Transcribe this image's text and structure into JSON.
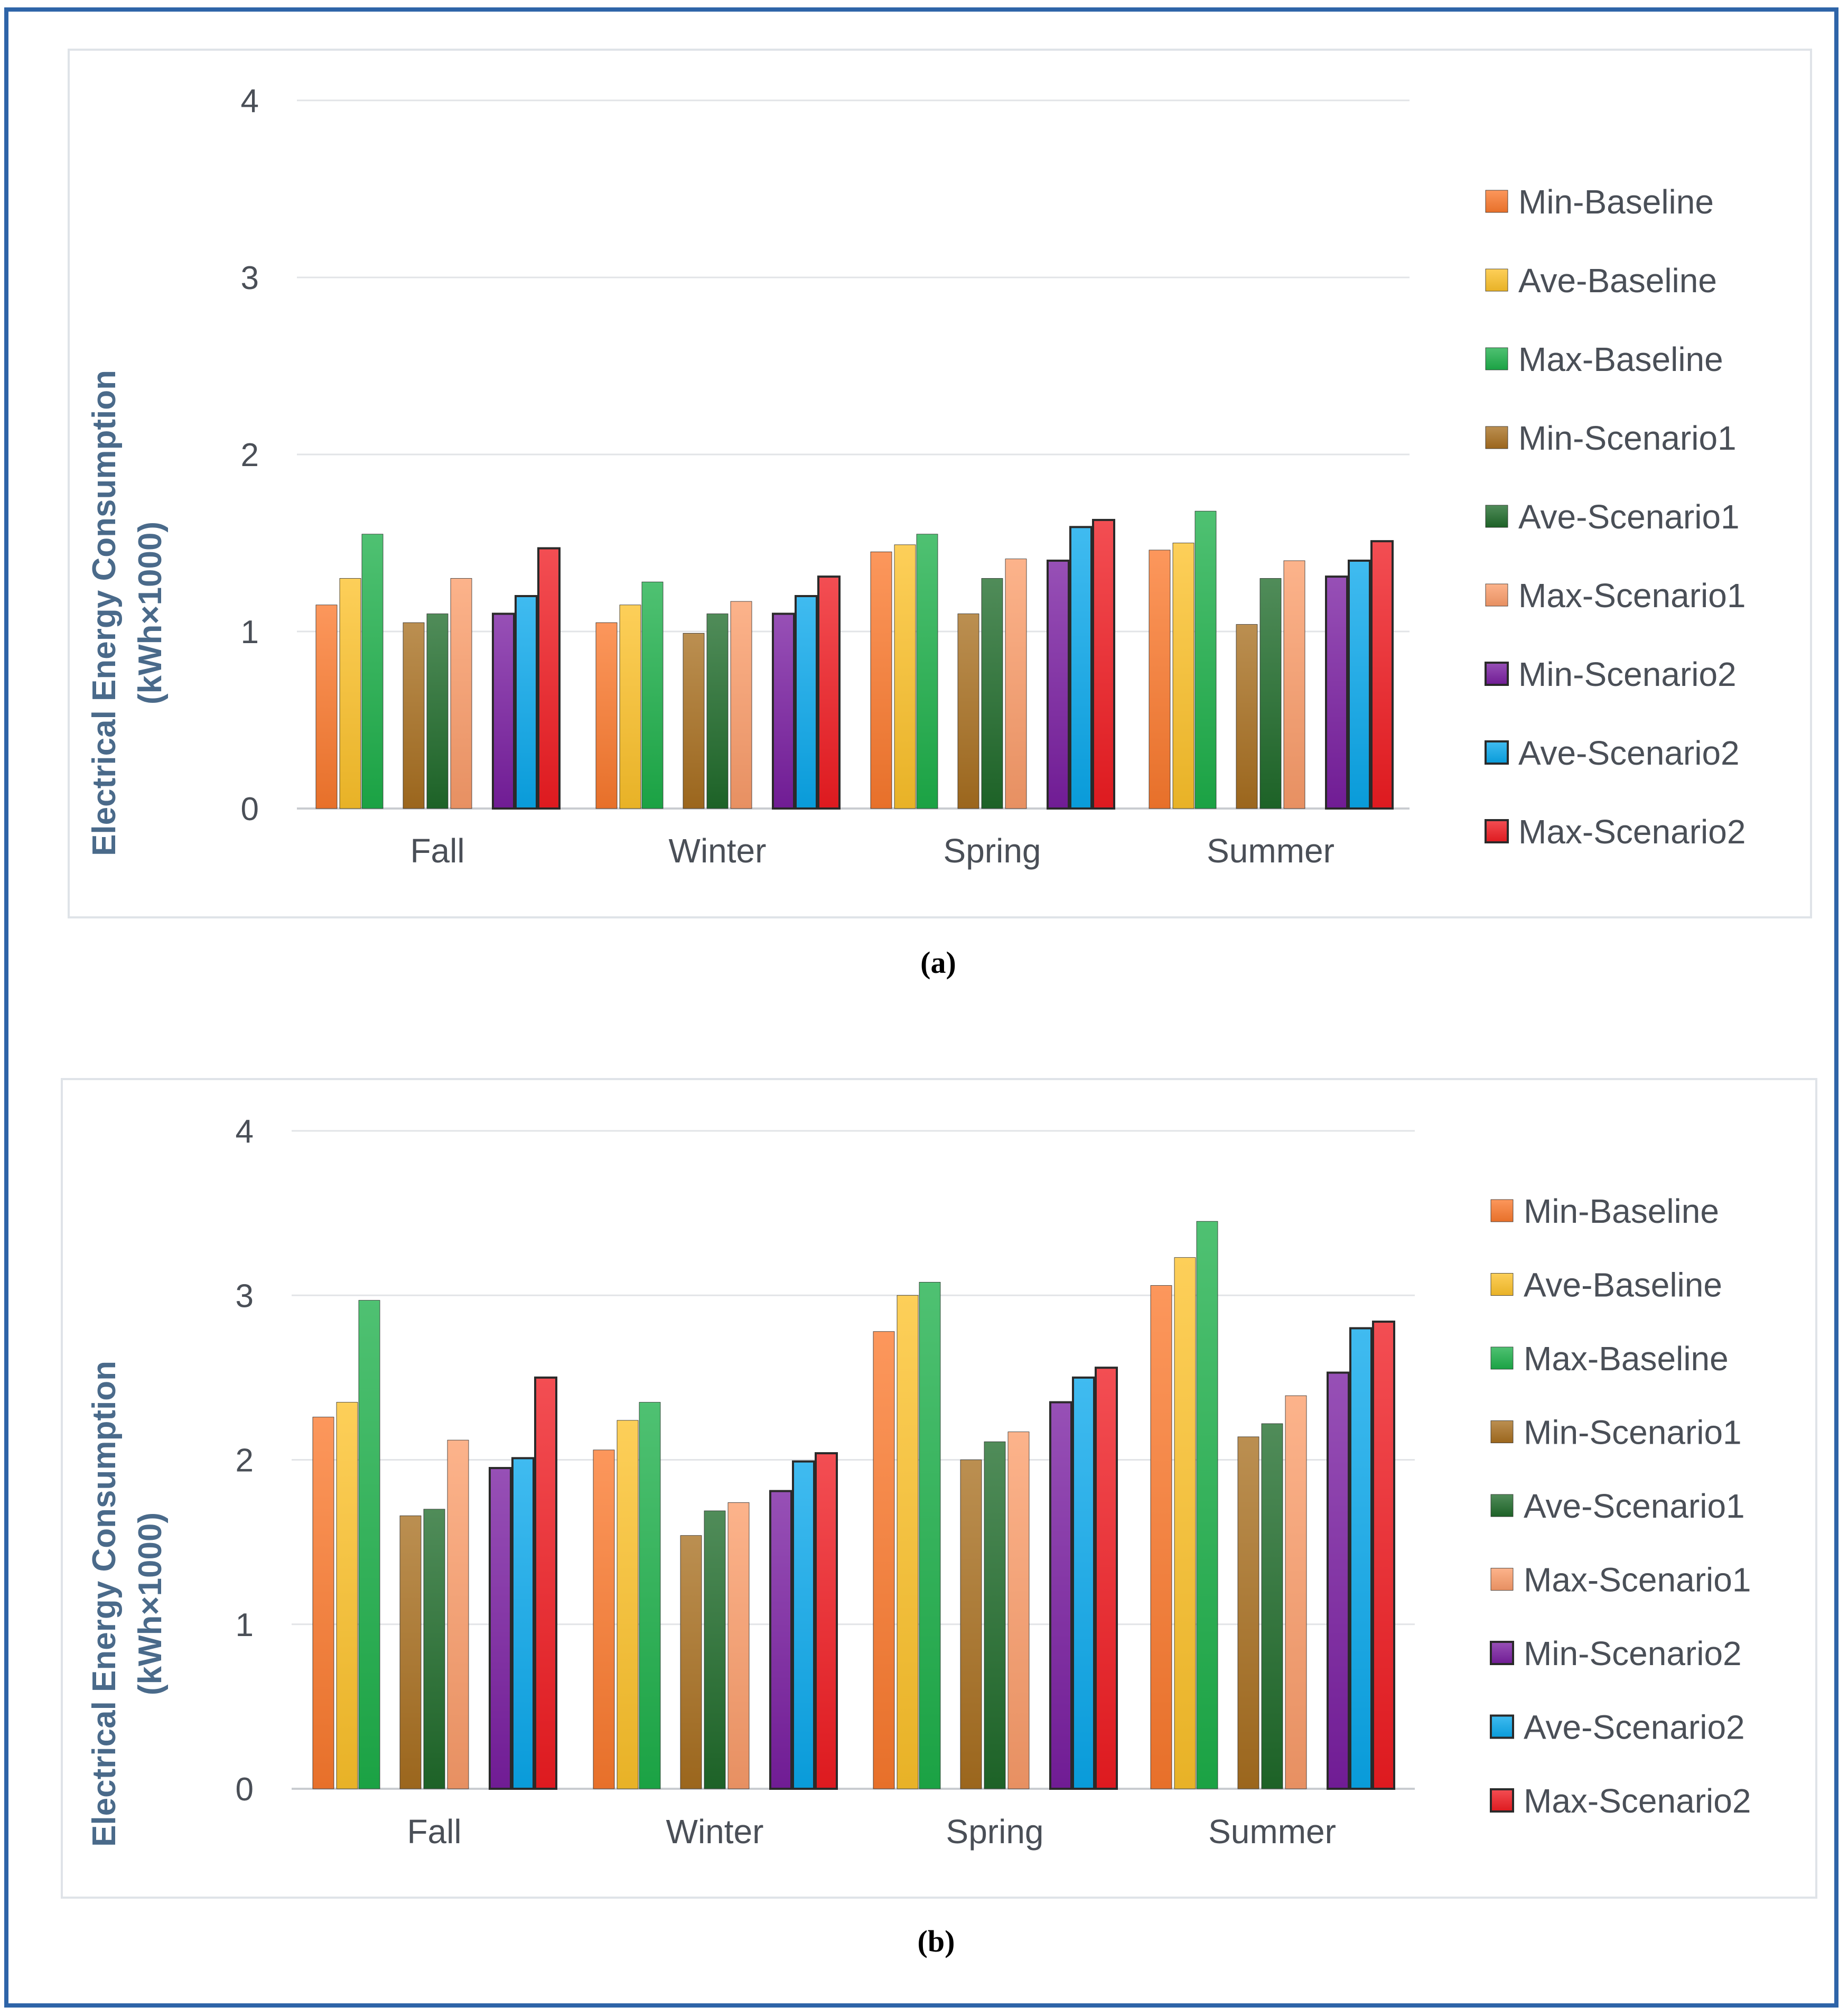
{
  "figure": {
    "caption_a": "(a)",
    "caption_b": "(b)"
  },
  "legend": [
    {
      "label": "Min-Baseline",
      "color": "#fb7a2e"
    },
    {
      "label": "Ave-Baseline",
      "color": "#fcc22a"
    },
    {
      "label": "Max-Baseline",
      "color": "#1db04a"
    },
    {
      "label": "Min-Scenario1",
      "color": "#a86f20"
    },
    {
      "label": "Ave-Scenario1",
      "color": "#1f6b2a"
    },
    {
      "label": "Max-Scenario1",
      "color": "#fb9d6a"
    },
    {
      "label": "Min-Scenario2",
      "color": "#7a1ea1"
    },
    {
      "label": "Ave-Scenario2",
      "color": "#0aa8ec"
    },
    {
      "label": "Max-Scenario2",
      "color": "#f01c22"
    }
  ],
  "chart_data": [
    {
      "id": "a",
      "type": "bar",
      "ylabel_line1": "Electrical Energy Consumption",
      "ylabel_line2": "(kWh×1000)",
      "ylim": [
        0,
        4
      ],
      "yticks": [
        "0",
        "1",
        "2",
        "3",
        "4"
      ],
      "grid": true,
      "legend_position": "right",
      "categories": [
        "Fall",
        "Winter",
        "Spring",
        "Summer"
      ],
      "series": [
        {
          "name": "Min-Baseline",
          "values": [
            1.15,
            1.05,
            1.45,
            1.46
          ]
        },
        {
          "name": "Ave-Baseline",
          "values": [
            1.3,
            1.15,
            1.49,
            1.5
          ]
        },
        {
          "name": "Max-Baseline",
          "values": [
            1.55,
            1.28,
            1.55,
            1.68
          ]
        },
        {
          "name": "Min-Scenario1",
          "values": [
            1.05,
            0.99,
            1.1,
            1.04
          ]
        },
        {
          "name": "Ave-Scenario1",
          "values": [
            1.1,
            1.1,
            1.3,
            1.3
          ]
        },
        {
          "name": "Max-Scenario1",
          "values": [
            1.3,
            1.17,
            1.41,
            1.4
          ]
        },
        {
          "name": "Min-Scenario2",
          "values": [
            1.1,
            1.1,
            1.4,
            1.31
          ]
        },
        {
          "name": "Ave-Scenario2",
          "values": [
            1.2,
            1.2,
            1.59,
            1.4
          ]
        },
        {
          "name": "Max-Scenario2",
          "values": [
            1.47,
            1.31,
            1.63,
            1.51
          ]
        }
      ]
    },
    {
      "id": "b",
      "type": "bar",
      "ylabel_line1": "Electrical Energy Consumption",
      "ylabel_line2": "(kWh×1000)",
      "ylim": [
        0,
        4
      ],
      "yticks": [
        "0",
        "1",
        "2",
        "3",
        "4"
      ],
      "grid": true,
      "legend_position": "right",
      "categories": [
        "Fall",
        "Winter",
        "Spring",
        "Summer"
      ],
      "series": [
        {
          "name": "Min-Baseline",
          "values": [
            2.26,
            2.06,
            2.78,
            3.06
          ]
        },
        {
          "name": "Ave-Baseline",
          "values": [
            2.35,
            2.24,
            3.0,
            3.23
          ]
        },
        {
          "name": "Max-Baseline",
          "values": [
            2.97,
            2.35,
            3.08,
            3.45
          ]
        },
        {
          "name": "Min-Scenario1",
          "values": [
            1.66,
            1.54,
            2.0,
            2.14
          ]
        },
        {
          "name": "Ave-Scenario1",
          "values": [
            1.7,
            1.69,
            2.11,
            2.22
          ]
        },
        {
          "name": "Max-Scenario1",
          "values": [
            2.12,
            1.74,
            2.17,
            2.39
          ]
        },
        {
          "name": "Min-Scenario2",
          "values": [
            1.95,
            1.81,
            2.35,
            2.53
          ]
        },
        {
          "name": "Ave-Scenario2",
          "values": [
            2.01,
            1.99,
            2.5,
            2.8
          ]
        },
        {
          "name": "Max-Scenario2",
          "values": [
            2.5,
            2.04,
            2.56,
            2.84
          ]
        }
      ]
    }
  ]
}
